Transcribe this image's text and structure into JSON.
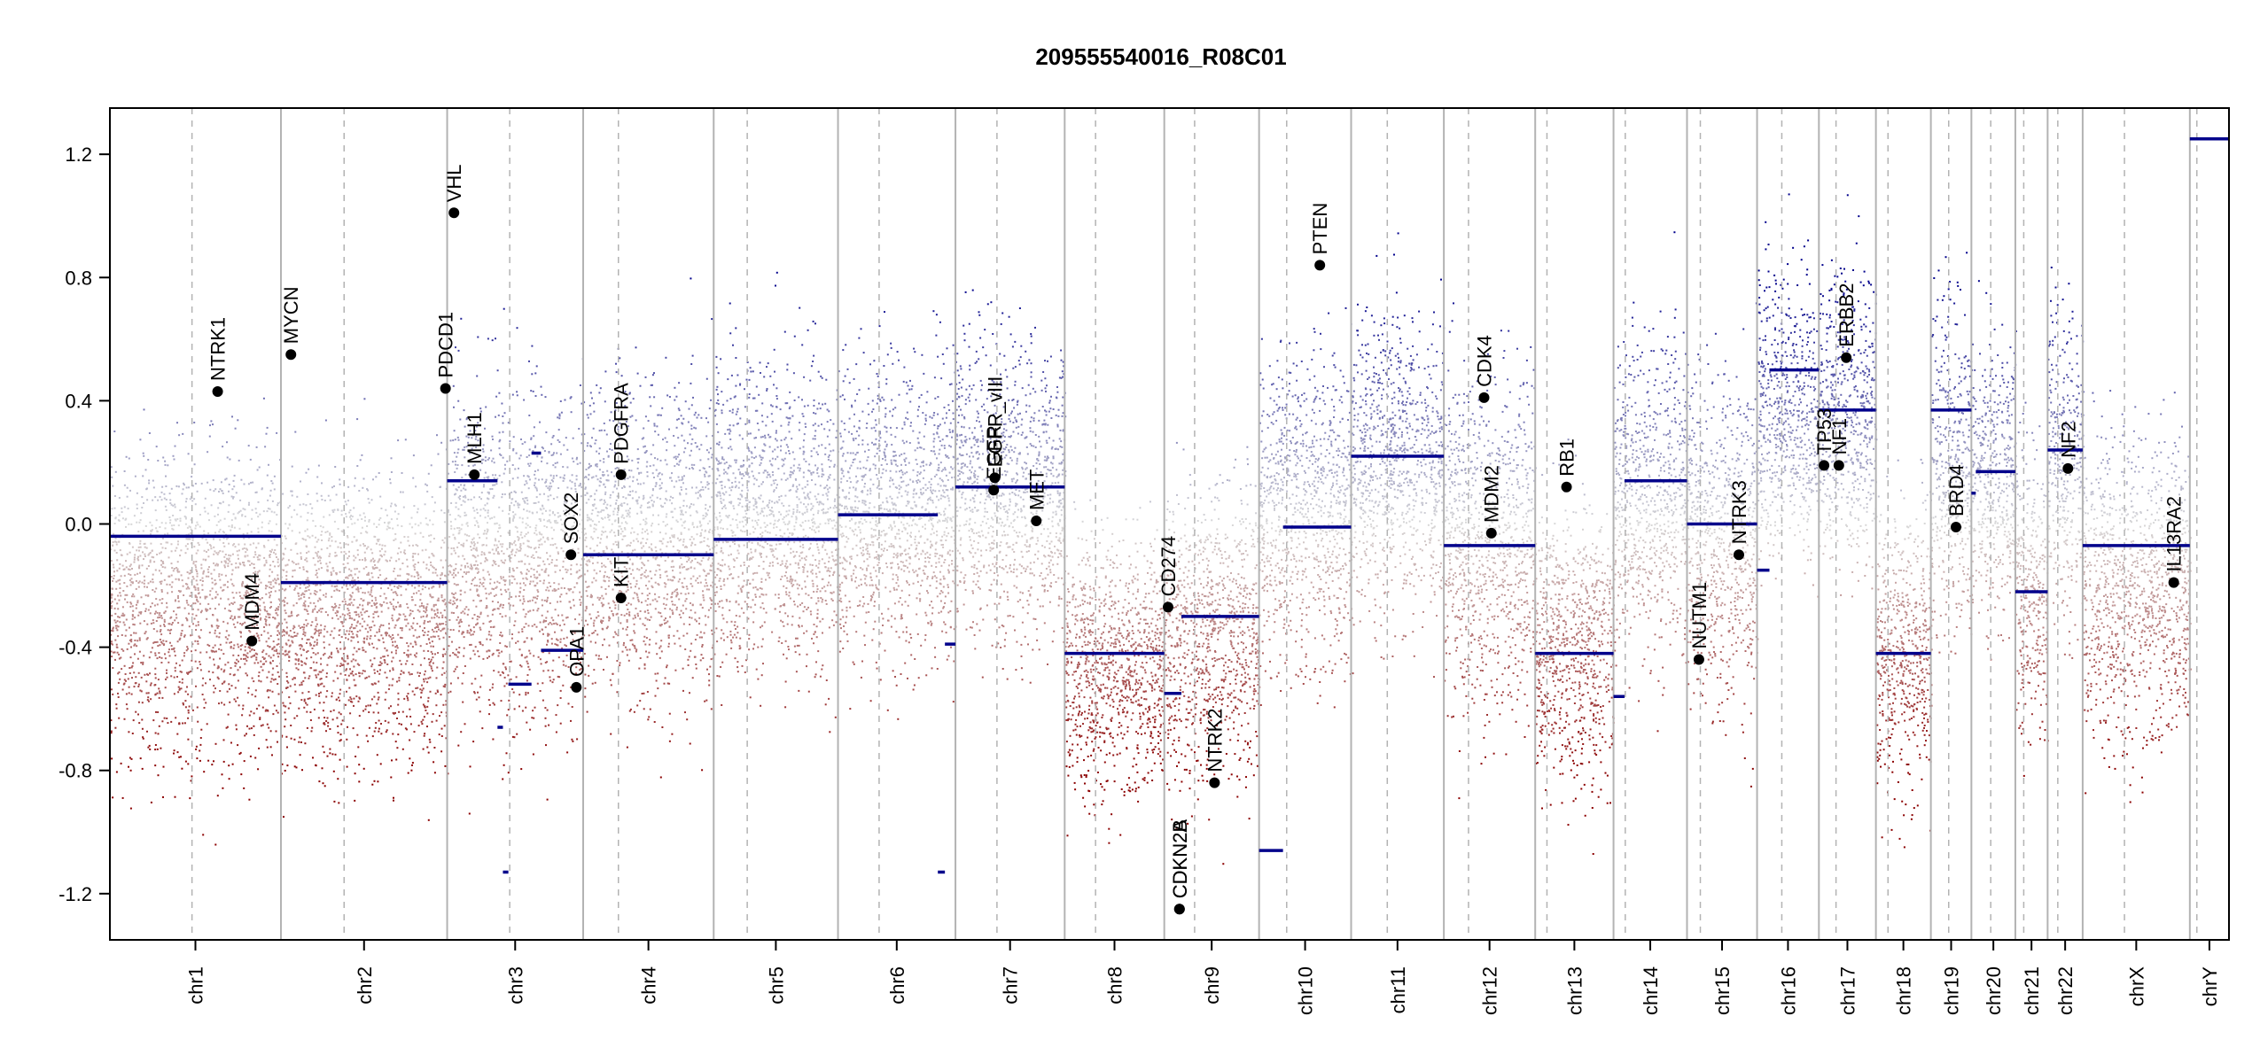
{
  "chart_data": {
    "type": "scatter",
    "title": "209555540016_R08C01",
    "xlabel": "",
    "ylabel": "",
    "ylim": [
      -1.35,
      1.35
    ],
    "yticks": [
      -1.2,
      -0.8,
      -0.4,
      0.0,
      0.4,
      0.8,
      1.2
    ],
    "ytick_labels": [
      "-1.2",
      "-0.8",
      "-0.4",
      "0.0",
      "0.4",
      "0.8",
      "1.2"
    ],
    "grid": false,
    "colors": {
      "gain": "#00008B",
      "loss": "#8B0000",
      "neutral": "#d8d8d8",
      "segment": "#00008B",
      "chr_line": "#b3b3b3",
      "point": "#000000"
    },
    "chromosomes": [
      {
        "name": "chr1",
        "length": 249,
        "centromere": 0.48
      },
      {
        "name": "chr2",
        "length": 242,
        "centromere": 0.38
      },
      {
        "name": "chr3",
        "length": 198,
        "centromere": 0.46
      },
      {
        "name": "chr4",
        "length": 190,
        "centromere": 0.27
      },
      {
        "name": "chr5",
        "length": 181,
        "centromere": 0.27
      },
      {
        "name": "chr6",
        "length": 171,
        "centromere": 0.35
      },
      {
        "name": "chr7",
        "length": 159,
        "centromere": 0.38
      },
      {
        "name": "chr8",
        "length": 145,
        "centromere": 0.31
      },
      {
        "name": "chr9",
        "length": 138,
        "centromere": 0.32
      },
      {
        "name": "chr10",
        "length": 134,
        "centromere": 0.3
      },
      {
        "name": "chr11",
        "length": 135,
        "centromere": 0.39
      },
      {
        "name": "chr12",
        "length": 133,
        "centromere": 0.27
      },
      {
        "name": "chr13",
        "length": 114,
        "centromere": 0.15
      },
      {
        "name": "chr14",
        "length": 107,
        "centromere": 0.16
      },
      {
        "name": "chr15",
        "length": 102,
        "centromere": 0.19
      },
      {
        "name": "chr16",
        "length": 90,
        "centromere": 0.4
      },
      {
        "name": "chr17",
        "length": 83,
        "centromere": 0.3
      },
      {
        "name": "chr18",
        "length": 80,
        "centromere": 0.22
      },
      {
        "name": "chr19",
        "length": 59,
        "centromere": 0.44
      },
      {
        "name": "chr20",
        "length": 64,
        "centromere": 0.44
      },
      {
        "name": "chr21",
        "length": 47,
        "centromere": 0.26
      },
      {
        "name": "chr22",
        "length": 51,
        "centromere": 0.29
      },
      {
        "name": "chrX",
        "length": 156,
        "centromere": 0.39
      },
      {
        "name": "chrY",
        "length": 57,
        "centromere": 0.18
      }
    ],
    "segments": [
      {
        "chr": "chr1",
        "start": 0.0,
        "end": 1.0,
        "value": -0.04
      },
      {
        "chr": "chr2",
        "start": 0.0,
        "end": 1.0,
        "value": -0.19
      },
      {
        "chr": "chr3",
        "start": 0.0,
        "end": 0.37,
        "value": 0.14
      },
      {
        "chr": "chr3",
        "start": 0.37,
        "end": 0.41,
        "value": -0.66
      },
      {
        "chr": "chr3",
        "start": 0.41,
        "end": 0.45,
        "value": -1.13
      },
      {
        "chr": "chr3",
        "start": 0.45,
        "end": 0.62,
        "value": -0.52
      },
      {
        "chr": "chr3",
        "start": 0.62,
        "end": 0.69,
        "value": 0.23
      },
      {
        "chr": "chr3",
        "start": 0.69,
        "end": 1.0,
        "value": -0.41
      },
      {
        "chr": "chr4",
        "start": 0.0,
        "end": 1.0,
        "value": -0.1
      },
      {
        "chr": "chr5",
        "start": 0.0,
        "end": 1.0,
        "value": -0.05
      },
      {
        "chr": "chr6",
        "start": 0.0,
        "end": 0.85,
        "value": 0.03
      },
      {
        "chr": "chr6",
        "start": 0.85,
        "end": 0.91,
        "value": -1.13
      },
      {
        "chr": "chr6",
        "start": 0.91,
        "end": 1.0,
        "value": -0.39
      },
      {
        "chr": "chr7",
        "start": 0.0,
        "end": 1.0,
        "value": 0.12
      },
      {
        "chr": "chr8",
        "start": 0.0,
        "end": 1.0,
        "value": -0.42
      },
      {
        "chr": "chr9",
        "start": 0.0,
        "end": 0.18,
        "value": -0.55
      },
      {
        "chr": "chr9",
        "start": 0.18,
        "end": 1.0,
        "value": -0.3
      },
      {
        "chr": "chr10",
        "start": 0.0,
        "end": 0.26,
        "value": -1.06
      },
      {
        "chr": "chr10",
        "start": 0.26,
        "end": 1.0,
        "value": -0.01
      },
      {
        "chr": "chr11",
        "start": 0.0,
        "end": 1.0,
        "value": 0.22
      },
      {
        "chr": "chr12",
        "start": 0.0,
        "end": 1.0,
        "value": -0.07
      },
      {
        "chr": "chr13",
        "start": 0.0,
        "end": 1.0,
        "value": -0.42
      },
      {
        "chr": "chr14",
        "start": 0.0,
        "end": 0.15,
        "value": -0.56
      },
      {
        "chr": "chr14",
        "start": 0.15,
        "end": 1.0,
        "value": 0.14
      },
      {
        "chr": "chr15",
        "start": 0.0,
        "end": 1.0,
        "value": 0.0
      },
      {
        "chr": "chr16",
        "start": 0.0,
        "end": 0.2,
        "value": -0.15
      },
      {
        "chr": "chr16",
        "start": 0.2,
        "end": 1.0,
        "value": 0.5
      },
      {
        "chr": "chr17",
        "start": 0.0,
        "end": 1.0,
        "value": 0.37
      },
      {
        "chr": "chr18",
        "start": 0.0,
        "end": 1.0,
        "value": -0.42
      },
      {
        "chr": "chr19",
        "start": 0.0,
        "end": 1.0,
        "value": 0.37
      },
      {
        "chr": "chr20",
        "start": 0.0,
        "end": 0.1,
        "value": 0.1
      },
      {
        "chr": "chr20",
        "start": 0.1,
        "end": 1.0,
        "value": 0.17
      },
      {
        "chr": "chr21",
        "start": 0.0,
        "end": 1.0,
        "value": -0.22
      },
      {
        "chr": "chr22",
        "start": 0.0,
        "end": 1.0,
        "value": 0.24
      },
      {
        "chr": "chrX",
        "start": 0.0,
        "end": 1.0,
        "value": -0.07
      },
      {
        "chr": "chrY",
        "start": 0.0,
        "end": 1.0,
        "value": 1.25
      }
    ],
    "genes": [
      {
        "name": "NTRK1",
        "chr": "chr1",
        "pos": 0.63,
        "value": 0.43
      },
      {
        "name": "MDM4",
        "chr": "chr1",
        "pos": 0.83,
        "value": -0.38
      },
      {
        "name": "MYCN",
        "chr": "chr2",
        "pos": 0.06,
        "value": 0.55
      },
      {
        "name": "VHL",
        "chr": "chr3",
        "pos": 0.05,
        "value": 1.01
      },
      {
        "name": "PDCD1",
        "chr": "chr2",
        "pos": 0.99,
        "value": 0.44
      },
      {
        "name": "MLH1",
        "chr": "chr3",
        "pos": 0.2,
        "value": 0.16
      },
      {
        "name": "SOX2",
        "chr": "chr3",
        "pos": 0.91,
        "value": -0.1
      },
      {
        "name": "OPA1",
        "chr": "chr3",
        "pos": 0.95,
        "value": -0.53
      },
      {
        "name": "PDGFRA",
        "chr": "chr4",
        "pos": 0.29,
        "value": 0.16
      },
      {
        "name": "KIT",
        "chr": "chr4",
        "pos": 0.29,
        "value": -0.24
      },
      {
        "name": "EGFR",
        "chr": "chr7",
        "pos": 0.35,
        "value": 0.11
      },
      {
        "name": "EGFR_vIII",
        "chr": "chr7",
        "pos": 0.36,
        "value": 0.15
      },
      {
        "name": "MET",
        "chr": "chr7",
        "pos": 0.74,
        "value": 0.01
      },
      {
        "name": "CD274",
        "chr": "chr9",
        "pos": 0.04,
        "value": -0.27
      },
      {
        "name": "CDKN2A",
        "chr": "chr9",
        "pos": 0.16,
        "value": -1.25
      },
      {
        "name": "CDKN2B",
        "chr": "chr9",
        "pos": 0.16,
        "value": -1.25
      },
      {
        "name": "NTRK2",
        "chr": "chr9",
        "pos": 0.53,
        "value": -0.84
      },
      {
        "name": "PTEN",
        "chr": "chr10",
        "pos": 0.66,
        "value": 0.84
      },
      {
        "name": "CDK4",
        "chr": "chr12",
        "pos": 0.44,
        "value": 0.41
      },
      {
        "name": "MDM2",
        "chr": "chr12",
        "pos": 0.52,
        "value": -0.03
      },
      {
        "name": "RB1",
        "chr": "chr13",
        "pos": 0.4,
        "value": 0.12
      },
      {
        "name": "NUTM1",
        "chr": "chr15",
        "pos": 0.17,
        "value": -0.44
      },
      {
        "name": "NTRK3",
        "chr": "chr15",
        "pos": 0.74,
        "value": -0.1
      },
      {
        "name": "TP53",
        "chr": "chr17",
        "pos": 0.09,
        "value": 0.19
      },
      {
        "name": "NF1",
        "chr": "chr17",
        "pos": 0.35,
        "value": 0.19
      },
      {
        "name": "ERBB2",
        "chr": "chr17",
        "pos": 0.48,
        "value": 0.54
      },
      {
        "name": "BRD4",
        "chr": "chr19",
        "pos": 0.62,
        "value": -0.01
      },
      {
        "name": "NF2",
        "chr": "chr22",
        "pos": 0.58,
        "value": 0.18
      },
      {
        "name": "IL13RA2",
        "chr": "chrX",
        "pos": 0.85,
        "value": -0.19
      }
    ],
    "chr_profiles": [
      {
        "chr": "chr1",
        "mean": -0.25,
        "spread": 0.42
      },
      {
        "chr": "chr2",
        "mean": -0.3,
        "spread": 0.38
      },
      {
        "chr": "chr3",
        "mean": -0.1,
        "spread": 0.45
      },
      {
        "chr": "chr4",
        "mean": -0.05,
        "spread": 0.42
      },
      {
        "chr": "chr5",
        "mean": 0.02,
        "spread": 0.42
      },
      {
        "chr": "chr6",
        "mean": 0.05,
        "spread": 0.4
      },
      {
        "chr": "chr7",
        "mean": 0.12,
        "spread": 0.4
      },
      {
        "chr": "chr8",
        "mean": -0.45,
        "spread": 0.35
      },
      {
        "chr": "chr9",
        "mean": -0.35,
        "spread": 0.4
      },
      {
        "chr": "chr10",
        "mean": 0.05,
        "spread": 0.42
      },
      {
        "chr": "chr11",
        "mean": 0.2,
        "spread": 0.4
      },
      {
        "chr": "chr12",
        "mean": -0.05,
        "spread": 0.45
      },
      {
        "chr": "chr13",
        "mean": -0.4,
        "spread": 0.38
      },
      {
        "chr": "chr14",
        "mean": 0.1,
        "spread": 0.42
      },
      {
        "chr": "chr15",
        "mean": -0.05,
        "spread": 0.45
      },
      {
        "chr": "chr16",
        "mean": 0.35,
        "spread": 0.38
      },
      {
        "chr": "chr17",
        "mean": 0.35,
        "spread": 0.4
      },
      {
        "chr": "chr18",
        "mean": -0.4,
        "spread": 0.38
      },
      {
        "chr": "chr19",
        "mean": 0.2,
        "spread": 0.45
      },
      {
        "chr": "chr20",
        "mean": 0.15,
        "spread": 0.4
      },
      {
        "chr": "chr21",
        "mean": -0.2,
        "spread": 0.4
      },
      {
        "chr": "chr22",
        "mean": 0.2,
        "spread": 0.4
      },
      {
        "chr": "chrX",
        "mean": -0.2,
        "spread": 0.42
      },
      {
        "chr": "chrY",
        "mean": 1.25,
        "spread": 0.0
      }
    ]
  }
}
